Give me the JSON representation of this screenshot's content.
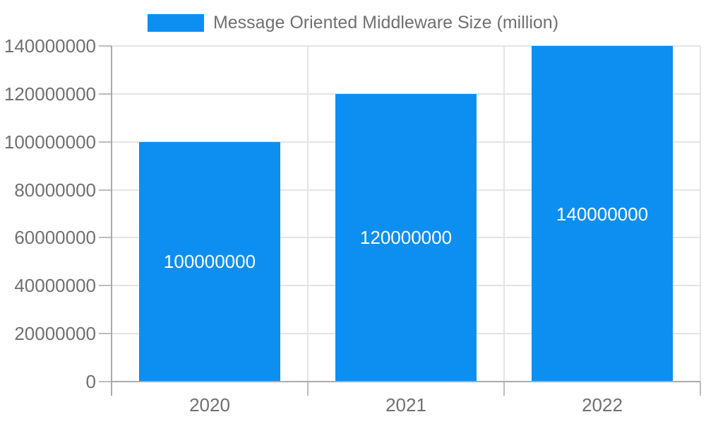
{
  "legend": {
    "label": "Message Oriented Middleware Size (million)"
  },
  "colors": {
    "bar": "#0d8ff2",
    "axis_line": "#ababab",
    "gridline": "#e4e4e4",
    "tick": "#bdbdbd",
    "text": "#707070",
    "bar_label_text": "#ffffff",
    "background": "#ffffff"
  },
  "chart_data": {
    "type": "bar",
    "title": "Message Oriented Middleware Size (million)",
    "categories": [
      "2020",
      "2021",
      "2022"
    ],
    "series": [
      {
        "name": "Message Oriented Middleware Size (million)",
        "values": [
          100000000,
          120000000,
          140000000
        ]
      }
    ],
    "values": [
      100000000,
      120000000,
      140000000
    ],
    "bar_labels": [
      "100000000",
      "120000000",
      "140000000"
    ],
    "xlabel": "",
    "ylabel": "",
    "ylim": [
      0,
      140000000
    ],
    "ytick_step": 20000000,
    "yticks": [
      "0",
      "20000000",
      "40000000",
      "60000000",
      "80000000",
      "100000000",
      "120000000",
      "140000000"
    ],
    "grid": true,
    "legend_position": "top-center"
  }
}
